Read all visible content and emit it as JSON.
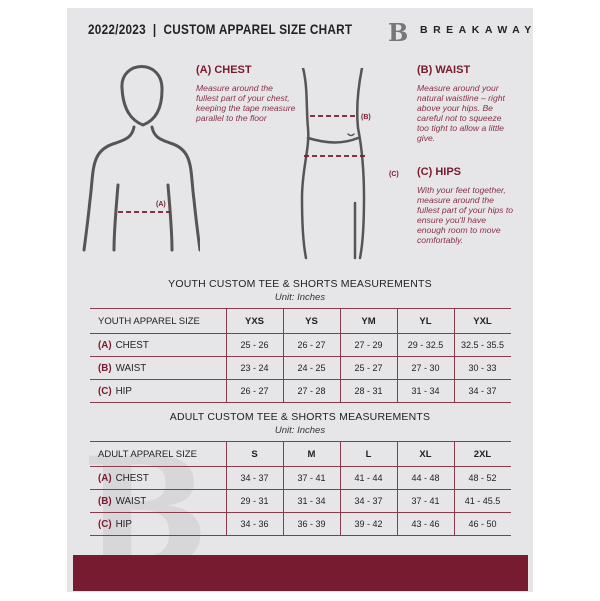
{
  "header": {
    "title": "2022/2023  |  CUSTOM APPAREL SIZE CHART",
    "brand": "BREAKAWAY",
    "logo_letter": "B"
  },
  "measures": {
    "chest": {
      "heading": "(A) CHEST",
      "text": "Measure around the fullest part of your chest, keeping the tape measure parallel to the floor",
      "marker": "(A)"
    },
    "waist": {
      "heading": "(B) WAIST",
      "text": "Measure around your natural waistline – right above your hips. Be careful not to squeeze too tight to allow a little give.",
      "marker": "(B)"
    },
    "hips": {
      "heading": "(C) HIPS",
      "text": "With your feet together, measure around the fullest part of your hips to ensure you'll have enough room to move comfortably.",
      "marker": "(C)"
    }
  },
  "youth": {
    "title": "YOUTH CUSTOM TEE & SHORTS MEASUREMENTS",
    "unit": "Unit: Inches",
    "header_label": "YOUTH APPAREL SIZE",
    "sizes": [
      "YXS",
      "YS",
      "YM",
      "YL",
      "YXL"
    ],
    "rows": [
      {
        "code": "(A)",
        "label": "CHEST",
        "values": [
          "25 - 26",
          "26 - 27",
          "27 - 29",
          "29 - 32.5",
          "32.5 - 35.5"
        ]
      },
      {
        "code": "(B)",
        "label": "WAIST",
        "values": [
          "23 - 24",
          "24 - 25",
          "25 - 27",
          "27 - 30",
          "30 - 33"
        ]
      },
      {
        "code": "(C)",
        "label": "HIP",
        "values": [
          "26 - 27",
          "27 - 28",
          "28 - 31",
          "31 - 34",
          "34 - 37"
        ]
      }
    ]
  },
  "adult": {
    "title": "ADULT CUSTOM TEE & SHORTS MEASUREMENTS",
    "unit": "Unit: Inches",
    "header_label": "ADULT APPAREL SIZE",
    "sizes": [
      "S",
      "M",
      "L",
      "XL",
      "2XL"
    ],
    "rows": [
      {
        "code": "(A)",
        "label": "CHEST",
        "values": [
          "34 - 37",
          "37 - 41",
          "41 - 44",
          "44 - 48",
          "48 - 52"
        ]
      },
      {
        "code": "(B)",
        "label": "WAIST",
        "values": [
          "29 - 31",
          "31 - 34",
          "34 - 37",
          "37 - 41",
          "41 - 45.5"
        ]
      },
      {
        "code": "(C)",
        "label": "HIP",
        "values": [
          "34 - 36",
          "36 - 39",
          "39 - 42",
          "43 - 46",
          "46 - 50"
        ]
      }
    ]
  },
  "colors": {
    "accent": "#761b30",
    "panel": "#e6e6e8"
  }
}
